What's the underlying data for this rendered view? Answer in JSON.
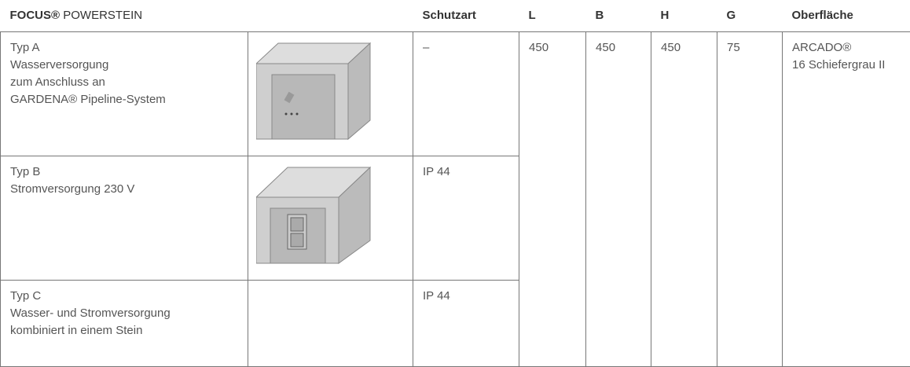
{
  "header": {
    "brand": "FOCUS®",
    "product": "POWERSTEIN",
    "columns": [
      "Schutzart",
      "L",
      "B",
      "H",
      "G",
      "Oberfläche"
    ]
  },
  "rows": [
    {
      "label": [
        "Typ A",
        "Wasserversorgung",
        "zum Anschluss an",
        "GARDENA® Pipeline-System"
      ],
      "schutzart": "–"
    },
    {
      "label": [
        "Typ B",
        "Stromversorgung 230 V"
      ],
      "schutzart": "IP 44"
    },
    {
      "label": [
        "Typ C",
        "Wasser- und Stromversorgung",
        "kombiniert in einem Stein"
      ],
      "schutzart": "IP 44"
    }
  ],
  "shared": {
    "L": "450",
    "B": "450",
    "H": "450",
    "G": "75",
    "oberflaeche": [
      "ARCADO®",
      "16 Schiefergrau II"
    ]
  }
}
